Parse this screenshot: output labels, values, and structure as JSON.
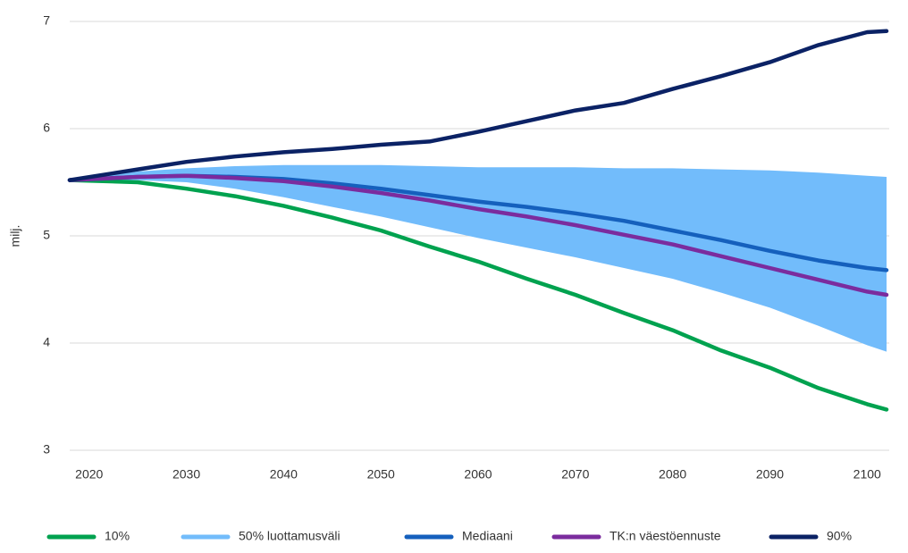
{
  "chart_data": {
    "type": "line",
    "y_label": "milj.",
    "x": [
      2018,
      2025,
      2030,
      2035,
      2040,
      2045,
      2050,
      2055,
      2060,
      2065,
      2070,
      2075,
      2080,
      2085,
      2090,
      2095,
      2100,
      2102
    ],
    "xlim": [
      2018,
      2102
    ],
    "xticks": [
      2020,
      2030,
      2040,
      2050,
      2060,
      2070,
      2080,
      2090,
      2100
    ],
    "ylim": [
      3,
      7
    ],
    "yticks": [
      3,
      4,
      5,
      6,
      7
    ],
    "grid": true,
    "legend": "bottom",
    "series": [
      {
        "name": "10%",
        "color": "#00a24f",
        "values": [
          5.52,
          5.5,
          5.44,
          5.37,
          5.28,
          5.17,
          5.05,
          4.9,
          4.76,
          4.6,
          4.45,
          4.28,
          4.12,
          3.93,
          3.77,
          3.58,
          3.43,
          3.38
        ]
      },
      {
        "name": "50% luottamusväli",
        "color": "#72bcfb",
        "type": "band",
        "upper": [
          5.52,
          5.6,
          5.63,
          5.65,
          5.66,
          5.66,
          5.66,
          5.65,
          5.64,
          5.64,
          5.64,
          5.63,
          5.63,
          5.62,
          5.61,
          5.59,
          5.56,
          5.55
        ],
        "lower": [
          5.52,
          5.52,
          5.5,
          5.44,
          5.36,
          5.27,
          5.18,
          5.08,
          4.98,
          4.89,
          4.8,
          4.7,
          4.6,
          4.47,
          4.33,
          4.16,
          3.98,
          3.92
        ]
      },
      {
        "name": "Mediaani",
        "color": "#1560bd",
        "values": [
          5.52,
          5.55,
          5.56,
          5.55,
          5.53,
          5.49,
          5.44,
          5.38,
          5.32,
          5.27,
          5.21,
          5.14,
          5.05,
          4.96,
          4.86,
          4.77,
          4.7,
          4.68
        ]
      },
      {
        "name": "TK:n väestöennuste",
        "color": "#7b2c9e",
        "values": [
          5.52,
          5.55,
          5.56,
          5.54,
          5.51,
          5.46,
          5.4,
          5.33,
          5.25,
          5.18,
          5.1,
          5.01,
          4.92,
          4.81,
          4.7,
          4.59,
          4.48,
          4.45
        ]
      },
      {
        "name": "90%",
        "color": "#0b2265",
        "values": [
          5.52,
          5.62,
          5.69,
          5.74,
          5.78,
          5.81,
          5.85,
          5.88,
          5.97,
          6.07,
          6.17,
          6.24,
          6.37,
          6.49,
          6.62,
          6.78,
          6.9,
          6.91
        ]
      }
    ]
  }
}
